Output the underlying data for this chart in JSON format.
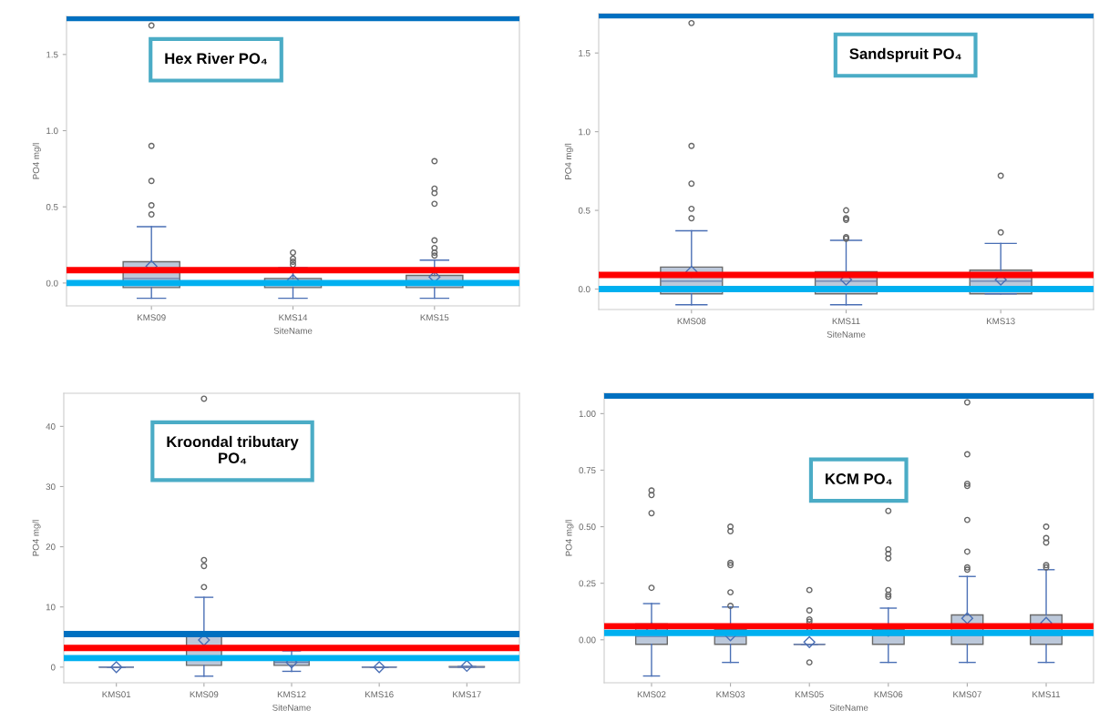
{
  "chart_data": [
    {
      "type": "box",
      "title": "Hex River PO₄",
      "xlabel": "SiteName",
      "ylabel": "PO4 mg/l",
      "categories": [
        "KMS09",
        "KMS14",
        "KMS15"
      ],
      "boxes": [
        {
          "low": -0.1,
          "q1": -0.03,
          "median": 0.03,
          "q3": 0.14,
          "high": 0.37,
          "mean": 0.11,
          "outliers": [
            1.69,
            0.9,
            0.67,
            0.51,
            0.45
          ]
        },
        {
          "low": -0.1,
          "q1": -0.03,
          "median": 0.01,
          "q3": 0.03,
          "high": 0.1,
          "mean": 0.02,
          "outliers": [
            0.2,
            0.16,
            0.14,
            0.12
          ]
        },
        {
          "low": -0.1,
          "q1": -0.03,
          "median": 0.01,
          "q3": 0.05,
          "high": 0.15,
          "mean": 0.04,
          "outliers": [
            0.8,
            0.62,
            0.59,
            0.52,
            0.28,
            0.23,
            0.2,
            0.18
          ]
        }
      ],
      "ylim": [
        -0.15,
        1.75
      ],
      "yticks": [
        {
          "value": 0,
          "label": "0.0"
        },
        0.5,
        {
          "value": 1,
          "label": "1.0"
        },
        1.5
      ],
      "ref_lines": [
        {
          "axis": "y",
          "value": 1.74,
          "color": "#0070c0"
        },
        {
          "axis": "y",
          "value": 0.085,
          "color": "#ff0000"
        },
        {
          "axis": "y",
          "value": 0.0,
          "color": "#00b0f0"
        }
      ]
    },
    {
      "type": "box",
      "title": "Sandspruit PO₄",
      "xlabel": "SiteName",
      "ylabel": "PO4 mg/l",
      "categories": [
        "KMS08",
        "KMS11",
        "KMS13"
      ],
      "boxes": [
        {
          "low": -0.1,
          "q1": -0.03,
          "median": 0.05,
          "q3": 0.14,
          "high": 0.37,
          "mean": 0.11,
          "outliers": [
            1.69,
            0.91,
            0.67,
            0.51,
            0.45
          ]
        },
        {
          "low": -0.1,
          "q1": -0.03,
          "median": 0.05,
          "q3": 0.11,
          "high": 0.31,
          "mean": 0.06,
          "outliers": [
            0.5,
            0.45,
            0.44,
            0.33,
            0.32
          ]
        },
        {
          "low": -0.03,
          "q1": -0.03,
          "median": 0.05,
          "q3": 0.12,
          "high": 0.29,
          "mean": 0.06,
          "outliers": [
            0.72,
            0.36
          ]
        }
      ],
      "ylim": [
        -0.13,
        1.75
      ],
      "yticks": [
        {
          "value": 0,
          "label": "0.0"
        },
        0.5,
        {
          "value": 1,
          "label": "1.0"
        },
        1.5
      ],
      "ref_lines": [
        {
          "axis": "y",
          "value": 1.74,
          "color": "#0070c0"
        },
        {
          "axis": "y",
          "value": 0.09,
          "color": "#ff0000"
        },
        {
          "axis": "y",
          "value": 0.0,
          "color": "#00b0f0"
        }
      ]
    },
    {
      "type": "box",
      "title": "Kroondal tributary\nPO₄",
      "xlabel": "SiteName",
      "ylabel": "PO4 mg/l",
      "categories": [
        "KMS01",
        "KMS09",
        "KMS12",
        "KMS16",
        "KMS17"
      ],
      "boxes": [
        {
          "low": 0,
          "q1": 0,
          "median": 0,
          "q3": 0,
          "high": 0,
          "mean": 0
        },
        {
          "low": -1.5,
          "q1": 0.3,
          "median": 2.8,
          "q3": 5.1,
          "high": 11.6,
          "mean": 4.5,
          "outliers": [
            44.6,
            17.8,
            16.8,
            13.3
          ]
        },
        {
          "low": -0.7,
          "q1": 0.3,
          "median": 0.8,
          "q3": 1.1,
          "high": 2.7,
          "mean": 0.8
        },
        {
          "low": 0,
          "q1": 0,
          "median": 0,
          "q3": 0,
          "high": 0,
          "mean": 0
        },
        {
          "low": 0,
          "q1": 0,
          "median": 0,
          "q3": 0.1,
          "high": 0.1,
          "mean": 0.2
        }
      ],
      "ylim": [
        -2.6,
        45.5
      ],
      "yticks": [
        0,
        10,
        20,
        30,
        40
      ],
      "ref_lines": [
        {
          "axis": "y",
          "value": 5.5,
          "color": "#0070c0"
        },
        {
          "axis": "y",
          "value": 3.2,
          "color": "#ff0000"
        },
        {
          "axis": "y",
          "value": 1.5,
          "color": "#00b0f0"
        }
      ]
    },
    {
      "type": "box",
      "title": "KCM PO₄",
      "xlabel": "SiteName",
      "ylabel": "PO4 mg/l",
      "categories": [
        "KMS02",
        "KMS03",
        "KMS05",
        "KMS06",
        "KMS07",
        "KMS11"
      ],
      "boxes": [
        {
          "low": -0.16,
          "q1": -0.02,
          "median": 0.015,
          "q3": 0.07,
          "high": 0.16,
          "mean": 0.05,
          "outliers": [
            0.66,
            0.64,
            0.56,
            0.23
          ]
        },
        {
          "low": -0.1,
          "q1": -0.02,
          "median": 0.015,
          "q3": 0.045,
          "high": 0.145,
          "mean": 0.02,
          "outliers": [
            0.5,
            0.48,
            0.34,
            0.33,
            0.21,
            0.15
          ]
        },
        {
          "low": -0.02,
          "q1": -0.02,
          "median": -0.02,
          "q3": -0.02,
          "high": -0.02,
          "mean": -0.01,
          "outliers": [
            -0.1,
            0.22,
            0.13,
            0.09,
            0.08,
            0.06,
            0.04
          ]
        },
        {
          "low": -0.1,
          "q1": -0.02,
          "median": 0.02,
          "q3": 0.045,
          "high": 0.14,
          "mean": 0.04,
          "outliers": [
            0.57,
            0.4,
            0.38,
            0.36,
            0.22,
            0.2,
            0.19
          ]
        },
        {
          "low": -0.1,
          "q1": -0.02,
          "median": 0.02,
          "q3": 0.11,
          "high": 0.28,
          "mean": 0.095,
          "outliers": [
            1.05,
            0.82,
            0.69,
            0.68,
            0.53,
            0.39,
            0.32,
            0.31
          ]
        },
        {
          "low": -0.1,
          "q1": -0.02,
          "median": 0.02,
          "q3": 0.11,
          "high": 0.31,
          "mean": 0.075,
          "outliers": [
            0.5,
            0.45,
            0.43,
            0.33,
            0.32
          ]
        }
      ],
      "ylim": [
        -0.19,
        1.09
      ],
      "yticks": [
        {
          "value": 0,
          "label": "0.00"
        },
        {
          "value": 0.25,
          "label": "0.25"
        },
        {
          "value": 0.5,
          "label": "0.50"
        },
        {
          "value": 0.75,
          "label": "0.75"
        },
        {
          "value": 1,
          "label": "1.00"
        }
      ],
      "ref_lines": [
        {
          "axis": "y",
          "value": 1.08,
          "color": "#0070c0"
        },
        {
          "axis": "y",
          "value": 0.06,
          "color": "#ff0000"
        },
        {
          "axis": "y",
          "value": 0.03,
          "color": "#00b0f0"
        }
      ]
    }
  ]
}
